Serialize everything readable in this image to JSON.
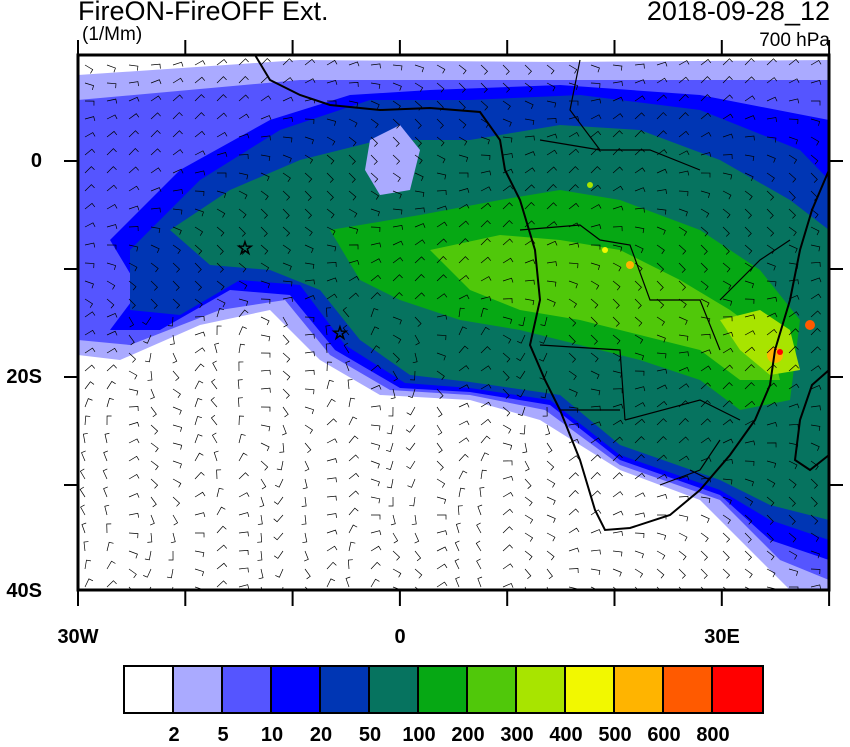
{
  "header": {
    "title": "FireON-FireOFF Ext.",
    "units": "(1/Mm)",
    "date": "2018-09-28_12",
    "level": "700 hPa"
  },
  "map": {
    "extent": {
      "lon": [
        -30,
        40
      ],
      "lat": [
        -40,
        10
      ]
    },
    "x_tick_labels": [
      {
        "lon": -30,
        "label": "30W"
      },
      {
        "lon": 0,
        "label": "0"
      },
      {
        "lon": 30,
        "label": "30E"
      }
    ],
    "y_tick_labels": [
      {
        "lat": 0,
        "label": "0"
      },
      {
        "lat": -20,
        "label": "20S"
      },
      {
        "lat": -40,
        "label": "40S"
      }
    ],
    "markers": [
      {
        "name": "star",
        "lon": -14.4,
        "lat": -8.0
      },
      {
        "name": "star",
        "lon": -5.6,
        "lat": -15.9
      }
    ],
    "overlays": [
      "wind-barbs",
      "coastlines",
      "country-borders"
    ]
  },
  "colorbar": {
    "colors": [
      "#ffffff",
      "#aaaaff",
      "#5555ff",
      "#0000ff",
      "#0036b4",
      "#06735f",
      "#06a814",
      "#50c80a",
      "#a8e400",
      "#f2f800",
      "#ffb400",
      "#ff5a00",
      "#ff0000"
    ],
    "labels": [
      "2",
      "5",
      "10",
      "20",
      "50",
      "100",
      "200",
      "300",
      "400",
      "500",
      "600",
      "800"
    ]
  }
}
